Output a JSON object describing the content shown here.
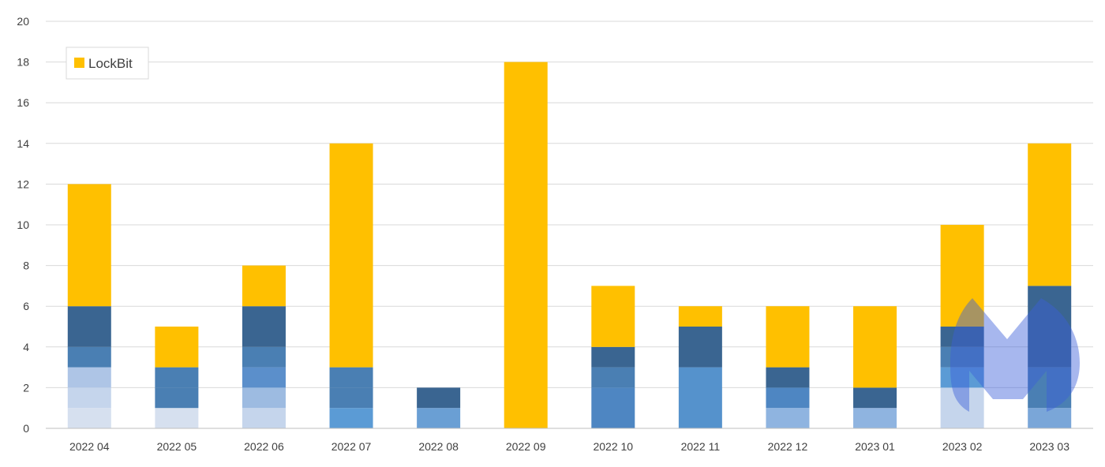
{
  "chart_data": {
    "type": "bar",
    "stacked": true,
    "categories": [
      "2022 04",
      "2022 05",
      "2022 06",
      "2022 07",
      "2022 08",
      "2022 09",
      "2022 10",
      "2022 11",
      "2022 12",
      "2023 01",
      "2023 02",
      "2023 03"
    ],
    "segments": [
      [
        {
          "value": 1,
          "color": "#d6e0ef"
        },
        {
          "value": 1,
          "color": "#c5d5ec"
        },
        {
          "value": 1,
          "color": "#aec5e6"
        },
        {
          "value": 1,
          "color": "#4a7fb3"
        },
        {
          "value": 2,
          "color": "#3a6591"
        },
        {
          "value": 6,
          "color": "#ffc000"
        }
      ],
      [
        {
          "value": 1,
          "color": "#d6e0ef"
        },
        {
          "value": 1,
          "color": "#4a7fb3"
        },
        {
          "value": 1,
          "color": "#4a7fb3"
        },
        {
          "value": 2,
          "color": "#ffc000"
        }
      ],
      [
        {
          "value": 1,
          "color": "#c5d5ec"
        },
        {
          "value": 1,
          "color": "#9dbbe1"
        },
        {
          "value": 1,
          "color": "#5b8fcb"
        },
        {
          "value": 1,
          "color": "#4a7fb3"
        },
        {
          "value": 2,
          "color": "#3a6591"
        },
        {
          "value": 2,
          "color": "#ffc000"
        }
      ],
      [
        {
          "value": 1,
          "color": "#5b9bd5"
        },
        {
          "value": 1,
          "color": "#4a7fb3"
        },
        {
          "value": 1,
          "color": "#4a7fb3"
        },
        {
          "value": 11,
          "color": "#ffc000"
        }
      ],
      [
        {
          "value": 1,
          "color": "#6a9fd4"
        },
        {
          "value": 1,
          "color": "#3a6591"
        }
      ],
      [
        {
          "value": 18,
          "color": "#ffc000"
        }
      ],
      [
        {
          "value": 2,
          "color": "#4e86c2"
        },
        {
          "value": 1,
          "color": "#4a7fb3"
        },
        {
          "value": 1,
          "color": "#3a6591"
        },
        {
          "value": 3,
          "color": "#ffc000"
        }
      ],
      [
        {
          "value": 3,
          "color": "#5592cc"
        },
        {
          "value": 2,
          "color": "#3a6591"
        },
        {
          "value": 1,
          "color": "#ffc000"
        }
      ],
      [
        {
          "value": 1,
          "color": "#8fb4e0"
        },
        {
          "value": 1,
          "color": "#4e86c2"
        },
        {
          "value": 1,
          "color": "#3a6591"
        },
        {
          "value": 3,
          "color": "#ffc000"
        }
      ],
      [
        {
          "value": 1,
          "color": "#8fb4e0"
        },
        {
          "value": 1,
          "color": "#3a6591"
        },
        {
          "value": 4,
          "color": "#ffc000"
        }
      ],
      [
        {
          "value": 2,
          "color": "#c5d5ec"
        },
        {
          "value": 1,
          "color": "#5b9bd5"
        },
        {
          "value": 1,
          "color": "#4a7fb3"
        },
        {
          "value": 1,
          "color": "#3a6591"
        },
        {
          "value": 5,
          "color": "#ffc000"
        }
      ],
      [
        {
          "value": 1,
          "color": "#7aa6d8"
        },
        {
          "value": 2,
          "color": "#4a7fb3"
        },
        {
          "value": 4,
          "color": "#3a6591"
        },
        {
          "value": 7,
          "color": "#ffc000"
        }
      ]
    ],
    "ylim": [
      0,
      20
    ],
    "yticks": [
      0,
      2,
      4,
      6,
      8,
      10,
      12,
      14,
      16,
      18,
      20
    ],
    "legend": {
      "label": "LockBit",
      "color": "#ffc000",
      "position": "top-left"
    },
    "grid": true,
    "gridColor": "#d9d9d9",
    "axisColor": "#bfbfbf"
  },
  "watermark": {
    "icon": "malwarebytes-logo-icon",
    "color": "#3b5fd9"
  }
}
